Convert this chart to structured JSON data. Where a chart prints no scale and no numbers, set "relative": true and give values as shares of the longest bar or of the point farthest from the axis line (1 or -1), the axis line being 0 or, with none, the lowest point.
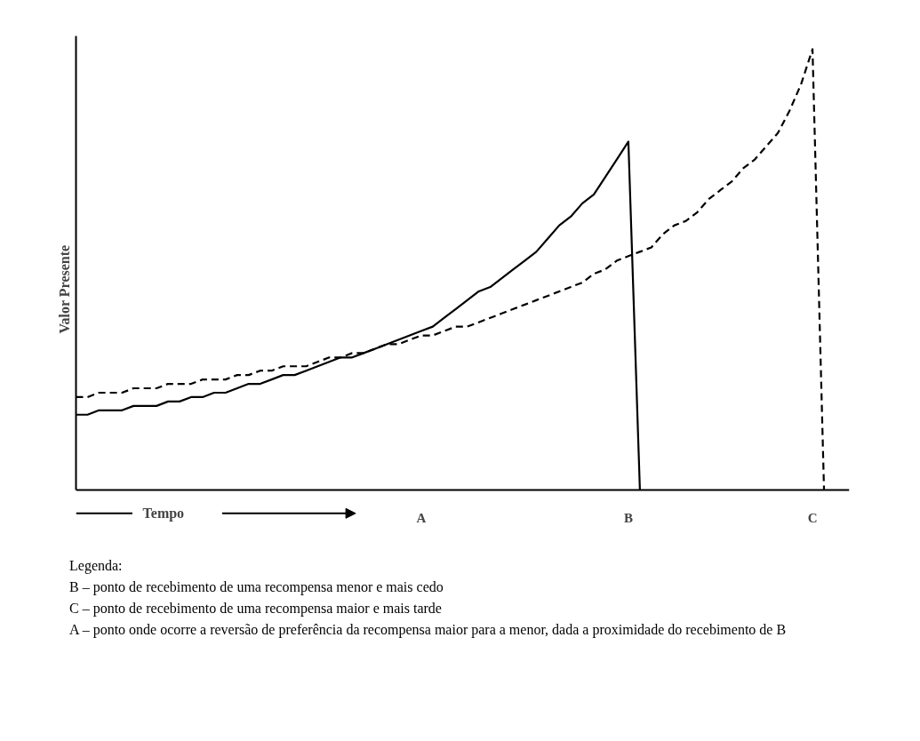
{
  "chart_data": {
    "type": "line",
    "relative": true,
    "ylabel": "Valor Presente",
    "xlabel": "Tempo",
    "categories": [
      null,
      null,
      null,
      null,
      null,
      null,
      null,
      null,
      null,
      null,
      null,
      null,
      null,
      null,
      null,
      null,
      null,
      null,
      null,
      null,
      null,
      null,
      null,
      null,
      null,
      null,
      null,
      null,
      null,
      null,
      "A",
      null,
      null,
      null,
      null,
      null,
      null,
      null,
      null,
      null,
      null,
      null,
      null,
      null,
      null,
      null,
      null,
      null,
      "B",
      null,
      null,
      null,
      null,
      null,
      null,
      null,
      null,
      null,
      null,
      null,
      null,
      null,
      null,
      null,
      "C",
      null,
      null,
      null
    ],
    "grid": false,
    "series": [
      {
        "color": "#000000",
        "line_style": "solid",
        "values": [
          0.17,
          0.17,
          0.18,
          0.18,
          0.18,
          0.19,
          0.19,
          0.19,
          0.2,
          0.2,
          0.21,
          0.21,
          0.22,
          0.22,
          0.23,
          0.24,
          0.24,
          0.25,
          0.26,
          0.26,
          0.27,
          0.28,
          0.29,
          0.3,
          0.3,
          0.31,
          0.32,
          0.33,
          0.34,
          0.35,
          0.36,
          0.37,
          0.39,
          0.41,
          0.43,
          0.45,
          0.46,
          0.48,
          0.5,
          0.52,
          0.54,
          0.57,
          0.6,
          0.62,
          0.65,
          0.67,
          0.71,
          0.75,
          0.79,
          0,
          null,
          null,
          null,
          null,
          null,
          null,
          null,
          null,
          null,
          null,
          null,
          null,
          null,
          null,
          null,
          null,
          null,
          null
        ]
      },
      {
        "color": "#000000",
        "line_style": "dashed",
        "values": [
          0.21,
          0.21,
          0.22,
          0.22,
          0.22,
          0.23,
          0.23,
          0.23,
          0.24,
          0.24,
          0.24,
          0.25,
          0.25,
          0.25,
          0.26,
          0.26,
          0.27,
          0.27,
          0.28,
          0.28,
          0.28,
          0.29,
          0.3,
          0.3,
          0.31,
          0.31,
          0.32,
          0.33,
          0.33,
          0.34,
          0.35,
          0.35,
          0.36,
          0.37,
          0.37,
          0.38,
          0.39,
          0.4,
          0.41,
          0.42,
          0.43,
          0.44,
          0.45,
          0.46,
          0.47,
          0.49,
          0.5,
          0.52,
          0.53,
          0.54,
          0.55,
          0.58,
          0.6,
          0.61,
          0.63,
          0.66,
          0.68,
          0.7,
          0.73,
          0.75,
          0.78,
          0.81,
          0.86,
          0.92,
          1,
          0,
          null,
          null
        ]
      }
    ],
    "annotations": [
      "Legenda:",
      "B – ponto de recebimento de uma recompensa menor e mais cedo",
      "C – ponto de recebimento de uma recompensa maior e mais tarde",
      "A – ponto onde ocorre a reversão de preferência da recompensa maior para a menor, dada a proximidade do recebimento de B"
    ]
  }
}
